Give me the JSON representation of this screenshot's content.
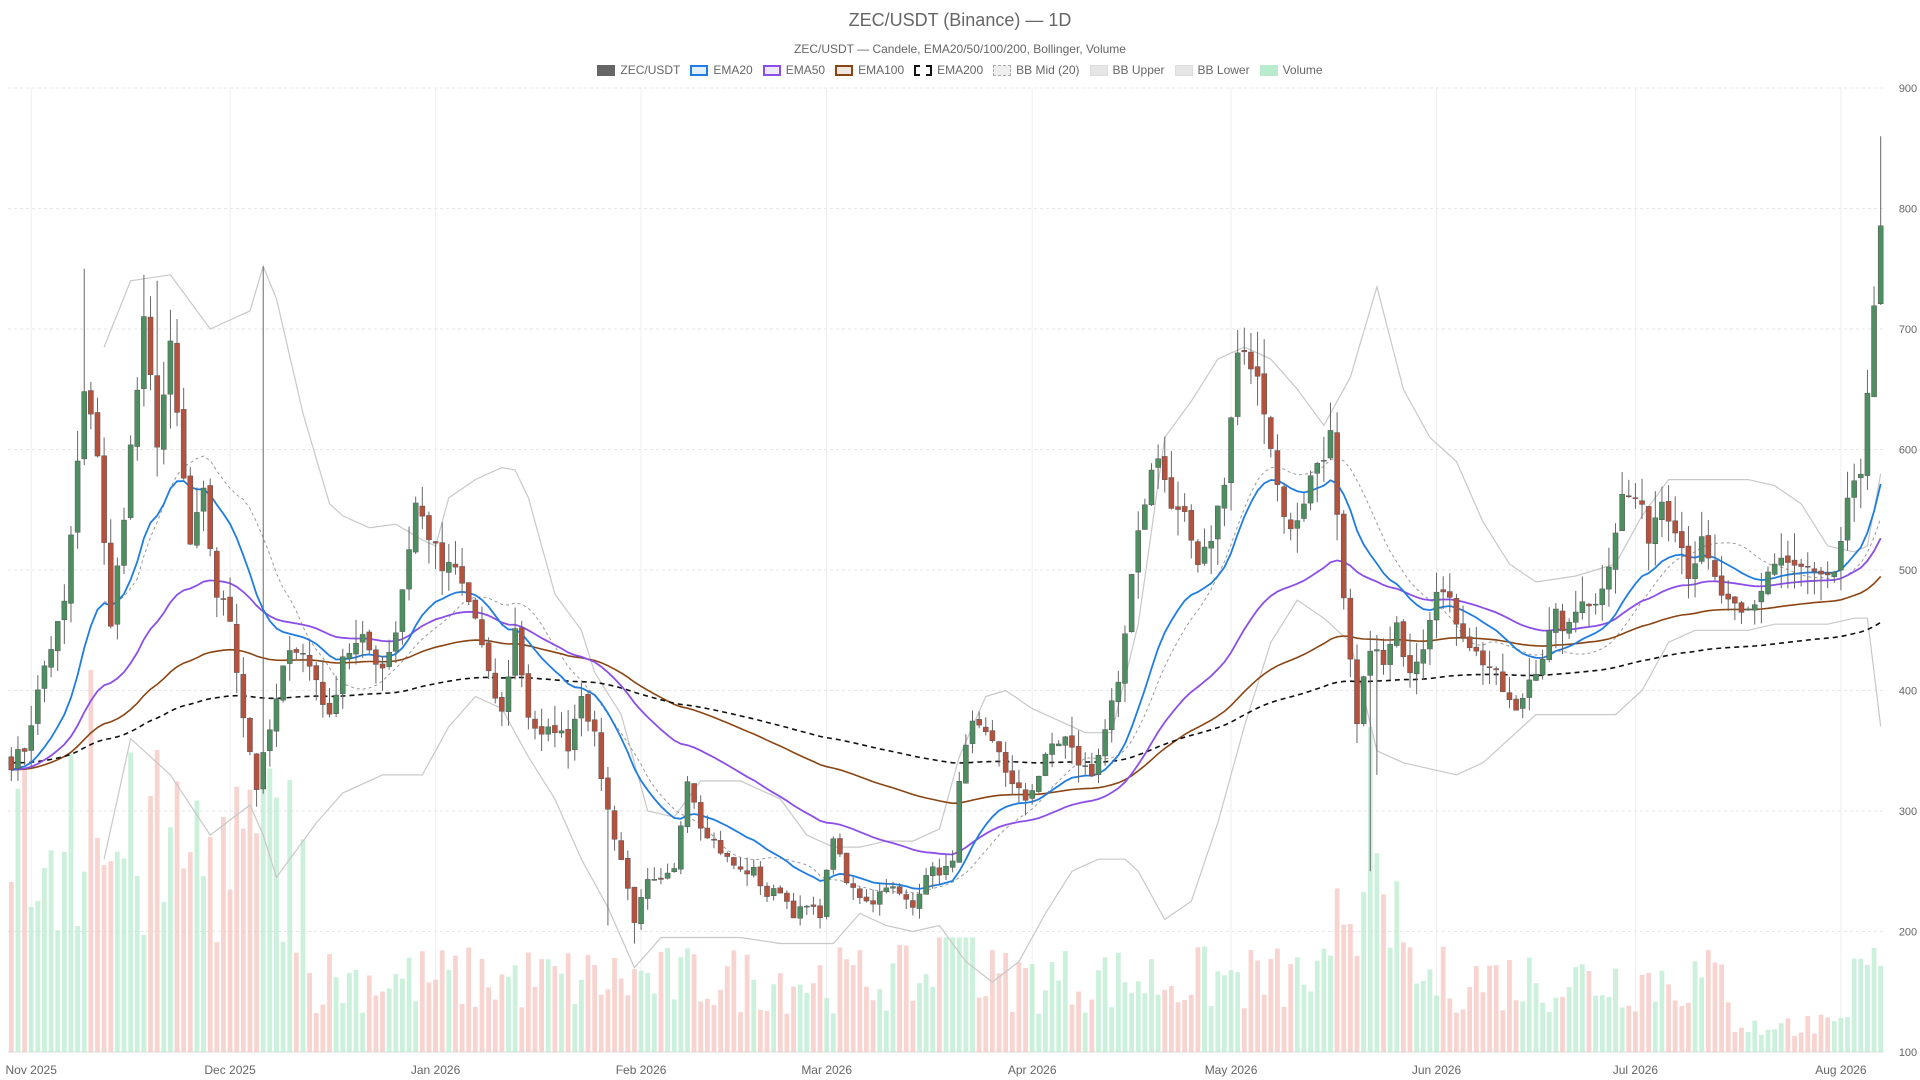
{
  "chart_data": {
    "type": "candlestick",
    "title": "ZEC/USDT (Binance) — 1D",
    "subtitle": "ZEC/USDT — Candele, EMA20/50/100/200, Bollinger, Volume",
    "legend": [
      {
        "label": "ZEC/USDT",
        "color": "#666666",
        "style": "solid"
      },
      {
        "label": "EMA20",
        "color": "#1f7de0",
        "style": "line"
      },
      {
        "label": "EMA50",
        "color": "#8b4fe8",
        "style": "line"
      },
      {
        "label": "EMA100",
        "color": "#8b4513",
        "style": "line"
      },
      {
        "label": "EMA200",
        "color": "#111111",
        "style": "dashed"
      },
      {
        "label": "BB Mid (20)",
        "color": "#aaaaaa",
        "style": "dotted"
      },
      {
        "label": "BB Upper",
        "color": "#c8c8c8",
        "style": "band"
      },
      {
        "label": "BB Lower",
        "color": "#c8c8c8",
        "style": "band"
      },
      {
        "label": "Volume",
        "color": "#b9ebcf",
        "style": "fill"
      }
    ],
    "y_axis": {
      "min": 100,
      "max": 900,
      "ticks": [
        100,
        200,
        300,
        400,
        500,
        600,
        700,
        800,
        900
      ],
      "position": "right"
    },
    "x_axis": {
      "ticks": [
        {
          "label": "Nov 2025",
          "day": 3
        },
        {
          "label": "Dec 2025",
          "day": 33
        },
        {
          "label": "Jan 2026",
          "day": 64
        },
        {
          "label": "Feb 2026",
          "day": 95
        },
        {
          "label": "Mar 2026",
          "day": 123
        },
        {
          "label": "Apr 2026",
          "day": 154
        },
        {
          "label": "May 2026",
          "day": 184
        },
        {
          "label": "Jun 2026",
          "day": 215
        },
        {
          "label": "Jul 2026",
          "day": 245
        },
        {
          "label": "Aug 2026",
          "day": 276
        }
      ]
    },
    "grid": true,
    "colors": {
      "up": "#4e8f62",
      "down": "#b5523e",
      "vol_up": "#b9ebcf",
      "vol_down": "#f6c6c0"
    },
    "close_anchors": [
      [
        0,
        340
      ],
      [
        2,
        352
      ],
      [
        5,
        420
      ],
      [
        8,
        470
      ],
      [
        11,
        645
      ],
      [
        13,
        600
      ],
      [
        15,
        450
      ],
      [
        18,
        600
      ],
      [
        20,
        700
      ],
      [
        22,
        610
      ],
      [
        24,
        680
      ],
      [
        27,
        520
      ],
      [
        29,
        560
      ],
      [
        31,
        480
      ],
      [
        33,
        460
      ],
      [
        35,
        380
      ],
      [
        37,
        320
      ],
      [
        40,
        390
      ],
      [
        42,
        440
      ],
      [
        44,
        430
      ],
      [
        46,
        410
      ],
      [
        48,
        375
      ],
      [
        50,
        430
      ],
      [
        53,
        440
      ],
      [
        56,
        420
      ],
      [
        58,
        450
      ],
      [
        61,
        555
      ],
      [
        63,
        530
      ],
      [
        65,
        500
      ],
      [
        67,
        500
      ],
      [
        70,
        460
      ],
      [
        72,
        410
      ],
      [
        74,
        380
      ],
      [
        76,
        450
      ],
      [
        78,
        380
      ],
      [
        80,
        360
      ],
      [
        82,
        370
      ],
      [
        84,
        355
      ],
      [
        86,
        400
      ],
      [
        88,
        360
      ],
      [
        90,
        300
      ],
      [
        92,
        260
      ],
      [
        94,
        210
      ],
      [
        96,
        240
      ],
      [
        98,
        240
      ],
      [
        100,
        250
      ],
      [
        102,
        330
      ],
      [
        104,
        290
      ],
      [
        106,
        275
      ],
      [
        108,
        260
      ],
      [
        110,
        250
      ],
      [
        112,
        250
      ],
      [
        114,
        230
      ],
      [
        116,
        235
      ],
      [
        118,
        215
      ],
      [
        120,
        220
      ],
      [
        122,
        215
      ],
      [
        124,
        280
      ],
      [
        126,
        240
      ],
      [
        128,
        230
      ],
      [
        130,
        225
      ],
      [
        132,
        240
      ],
      [
        134,
        230
      ],
      [
        136,
        220
      ],
      [
        138,
        250
      ],
      [
        140,
        250
      ],
      [
        142,
        255
      ],
      [
        143,
        330
      ],
      [
        145,
        370
      ],
      [
        147,
        360
      ],
      [
        149,
        350
      ],
      [
        151,
        320
      ],
      [
        153,
        310
      ],
      [
        155,
        330
      ],
      [
        157,
        355
      ],
      [
        159,
        360
      ],
      [
        161,
        340
      ],
      [
        163,
        330
      ],
      [
        165,
        370
      ],
      [
        167,
        400
      ],
      [
        169,
        490
      ],
      [
        171,
        560
      ],
      [
        173,
        600
      ],
      [
        175,
        550
      ],
      [
        177,
        540
      ],
      [
        179,
        510
      ],
      [
        181,
        530
      ],
      [
        183,
        570
      ],
      [
        185,
        680
      ],
      [
        187,
        670
      ],
      [
        189,
        640
      ],
      [
        191,
        570
      ],
      [
        193,
        530
      ],
      [
        195,
        560
      ],
      [
        197,
        590
      ],
      [
        199,
        610
      ],
      [
        201,
        470
      ],
      [
        203,
        370
      ],
      [
        205,
        440
      ],
      [
        207,
        420
      ],
      [
        209,
        450
      ],
      [
        211,
        420
      ],
      [
        213,
        440
      ],
      [
        215,
        490
      ],
      [
        217,
        470
      ],
      [
        219,
        450
      ],
      [
        221,
        430
      ],
      [
        223,
        420
      ],
      [
        225,
        400
      ],
      [
        227,
        380
      ],
      [
        229,
        410
      ],
      [
        231,
        430
      ],
      [
        233,
        460
      ],
      [
        235,
        450
      ],
      [
        237,
        480
      ],
      [
        239,
        470
      ],
      [
        241,
        510
      ],
      [
        243,
        560
      ],
      [
        245,
        560
      ],
      [
        247,
        530
      ],
      [
        249,
        560
      ],
      [
        251,
        540
      ],
      [
        253,
        500
      ],
      [
        255,
        520
      ],
      [
        257,
        490
      ],
      [
        259,
        470
      ],
      [
        261,
        460
      ],
      [
        263,
        470
      ],
      [
        265,
        500
      ],
      [
        267,
        510
      ],
      [
        269,
        500
      ],
      [
        271,
        500
      ],
      [
        273,
        490
      ],
      [
        275,
        490
      ],
      [
        277,
        560
      ],
      [
        279,
        570
      ],
      [
        281,
        730
      ],
      [
        282,
        790
      ]
    ],
    "bb_upper": [
      [
        14,
        685
      ],
      [
        18,
        740
      ],
      [
        24,
        745
      ],
      [
        30,
        700
      ],
      [
        36,
        715
      ],
      [
        38,
        752
      ],
      [
        40,
        725
      ],
      [
        44,
        630
      ],
      [
        48,
        555
      ],
      [
        50,
        545
      ],
      [
        54,
        535
      ],
      [
        58,
        538
      ],
      [
        62,
        525
      ],
      [
        64,
        520
      ],
      [
        66,
        560
      ],
      [
        70,
        575
      ],
      [
        74,
        585
      ],
      [
        76,
        583
      ],
      [
        78,
        560
      ],
      [
        82,
        480
      ],
      [
        86,
        450
      ],
      [
        88,
        415
      ],
      [
        92,
        380
      ],
      [
        96,
        300
      ],
      [
        100,
        295
      ],
      [
        104,
        325
      ],
      [
        110,
        325
      ],
      [
        116,
        310
      ],
      [
        120,
        280
      ],
      [
        124,
        270
      ],
      [
        128,
        270
      ],
      [
        132,
        275
      ],
      [
        136,
        275
      ],
      [
        140,
        285
      ],
      [
        143,
        345
      ],
      [
        147,
        395
      ],
      [
        150,
        400
      ],
      [
        154,
        385
      ],
      [
        158,
        375
      ],
      [
        162,
        365
      ],
      [
        166,
        365
      ],
      [
        170,
        455
      ],
      [
        174,
        610
      ],
      [
        178,
        640
      ],
      [
        182,
        675
      ],
      [
        186,
        685
      ],
      [
        190,
        675
      ],
      [
        194,
        650
      ],
      [
        198,
        620
      ],
      [
        202,
        660
      ],
      [
        206,
        735
      ],
      [
        210,
        650
      ],
      [
        214,
        610
      ],
      [
        218,
        590
      ],
      [
        222,
        540
      ],
      [
        226,
        505
      ],
      [
        230,
        490
      ],
      [
        236,
        495
      ],
      [
        242,
        505
      ],
      [
        246,
        545
      ],
      [
        250,
        575
      ],
      [
        256,
        575
      ],
      [
        262,
        575
      ],
      [
        266,
        570
      ],
      [
        270,
        555
      ],
      [
        274,
        520
      ],
      [
        278,
        515
      ],
      [
        280,
        520
      ],
      [
        282,
        580
      ]
    ],
    "bb_lower": [
      [
        14,
        260
      ],
      [
        18,
        360
      ],
      [
        24,
        330
      ],
      [
        30,
        280
      ],
      [
        36,
        305
      ],
      [
        38,
        280
      ],
      [
        40,
        245
      ],
      [
        42,
        260
      ],
      [
        46,
        290
      ],
      [
        50,
        315
      ],
      [
        56,
        330
      ],
      [
        62,
        330
      ],
      [
        66,
        370
      ],
      [
        70,
        395
      ],
      [
        74,
        385
      ],
      [
        78,
        345
      ],
      [
        82,
        310
      ],
      [
        86,
        260
      ],
      [
        90,
        220
      ],
      [
        94,
        170
      ],
      [
        98,
        195
      ],
      [
        104,
        195
      ],
      [
        110,
        195
      ],
      [
        116,
        190
      ],
      [
        120,
        190
      ],
      [
        124,
        190
      ],
      [
        128,
        215
      ],
      [
        132,
        205
      ],
      [
        136,
        200
      ],
      [
        140,
        205
      ],
      [
        144,
        175
      ],
      [
        148,
        158
      ],
      [
        152,
        175
      ],
      [
        156,
        215
      ],
      [
        160,
        250
      ],
      [
        164,
        260
      ],
      [
        168,
        260
      ],
      [
        170,
        250
      ],
      [
        172,
        230
      ],
      [
        174,
        210
      ],
      [
        178,
        225
      ],
      [
        182,
        290
      ],
      [
        186,
        370
      ],
      [
        190,
        440
      ],
      [
        194,
        475
      ],
      [
        198,
        460
      ],
      [
        202,
        440
      ],
      [
        206,
        350
      ],
      [
        210,
        340
      ],
      [
        214,
        335
      ],
      [
        218,
        330
      ],
      [
        222,
        340
      ],
      [
        226,
        360
      ],
      [
        230,
        380
      ],
      [
        234,
        380
      ],
      [
        238,
        380
      ],
      [
        242,
        380
      ],
      [
        246,
        400
      ],
      [
        250,
        440
      ],
      [
        254,
        450
      ],
      [
        258,
        450
      ],
      [
        262,
        450
      ],
      [
        266,
        455
      ],
      [
        270,
        455
      ],
      [
        274,
        455
      ],
      [
        278,
        460
      ],
      [
        280,
        460
      ],
      [
        282,
        370
      ]
    ]
  }
}
